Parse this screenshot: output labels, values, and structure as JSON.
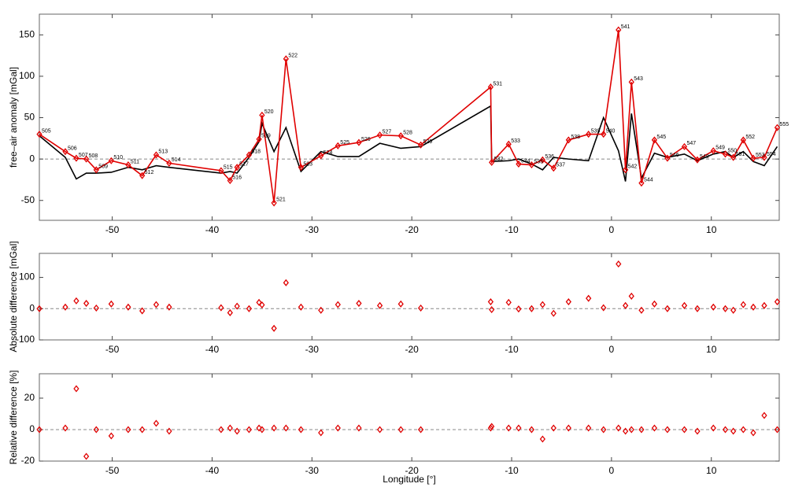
{
  "chart_data": [
    {
      "type": "line",
      "ylabel": "free–air anomaly [mGal]",
      "x": [
        -57.3,
        -54.7,
        -53.6,
        -52.6,
        -51.6,
        -50.1,
        -48.4,
        -47.0,
        -45.6,
        -44.3,
        -39.1,
        -38.2,
        -37.5,
        -36.3,
        -35.3,
        -35.0,
        -33.8,
        -32.6,
        -31.1,
        -29.1,
        -27.4,
        -25.3,
        -23.2,
        -21.1,
        -19.1,
        -12.1,
        -12.0,
        -10.3,
        -9.3,
        -8.0,
        -6.9,
        -5.8,
        -4.3,
        -2.3,
        -0.8,
        0.7,
        1.4,
        2.0,
        3.0,
        4.3,
        5.6,
        7.3,
        8.6,
        10.2,
        11.4,
        12.2,
        13.2,
        14.2,
        15.3,
        16.6
      ],
      "point_labels": [
        "505",
        "506",
        "507",
        "508",
        "509",
        "510",
        "511",
        "512",
        "513",
        "514",
        "515",
        "516",
        "517",
        "518",
        "519",
        "520",
        "521",
        "522",
        "523",
        "524",
        "525",
        "526",
        "527",
        "528",
        "529",
        "531",
        "532",
        "533",
        "534",
        "535",
        "536",
        "537",
        "538",
        "539",
        "540",
        "541",
        "542",
        "543",
        "544",
        "545",
        "546",
        "547",
        "548",
        "549",
        "550",
        "551",
        "552",
        "553",
        "554",
        "555"
      ],
      "series": [
        {
          "color": "#000000",
          "marker": false,
          "values": [
            28,
            2,
            -24,
            -17,
            -17,
            -16,
            -10,
            -13,
            -8,
            -10,
            -17,
            -15,
            -17,
            2,
            21,
            43,
            9,
            38,
            -15,
            9,
            3,
            3,
            19,
            13,
            15,
            64,
            -3,
            -2,
            0,
            -6,
            -13,
            2,
            0,
            -2,
            50,
            10,
            -27,
            55,
            -23,
            7,
            2,
            6,
            -2,
            6,
            9,
            2,
            9,
            -3,
            -8,
            15
          ]
        },
        {
          "color": "#e00000",
          "marker": true,
          "values": [
            30,
            9,
            1,
            0,
            -13,
            -2,
            -7,
            -20,
            5,
            -5,
            -14,
            -26,
            -10,
            5,
            24,
            53,
            -53,
            121,
            -10,
            4,
            16,
            20,
            29,
            28,
            17,
            87,
            -4,
            18,
            -6,
            -7,
            -1,
            -11,
            23,
            30,
            30,
            156,
            -13,
            93,
            -29,
            23,
            1,
            15,
            -1,
            10,
            6,
            2,
            23,
            1,
            2,
            38
          ]
        }
      ],
      "xlim": [
        -57.3,
        16.8
      ],
      "ylim": [
        -74,
        175
      ],
      "xticks": [
        -50,
        -40,
        -30,
        -20,
        -10,
        0,
        10
      ],
      "yticks": [
        -50,
        0,
        50,
        100,
        150
      ],
      "zero_line": true
    },
    {
      "type": "scatter",
      "ylabel": "Absolute difference [mGal]",
      "x": [
        -57.3,
        -54.7,
        -53.6,
        -52.6,
        -51.6,
        -50.1,
        -48.4,
        -47.0,
        -45.6,
        -44.3,
        -39.1,
        -38.2,
        -37.5,
        -36.3,
        -35.3,
        -35.0,
        -33.8,
        -32.6,
        -31.1,
        -29.1,
        -27.4,
        -25.3,
        -23.2,
        -21.1,
        -19.1,
        -12.1,
        -12.0,
        -10.3,
        -9.3,
        -8.0,
        -6.9,
        -5.8,
        -4.3,
        -2.3,
        -0.8,
        0.7,
        1.4,
        2.0,
        3.0,
        4.3,
        5.6,
        7.3,
        8.6,
        10.2,
        11.4,
        12.2,
        13.2,
        14.2,
        15.3,
        16.6
      ],
      "series": [
        {
          "color": "#e00000",
          "values": [
            0,
            5,
            25,
            17,
            2,
            15,
            5,
            -7,
            13,
            5,
            3,
            -13,
            8,
            0,
            20,
            12,
            -63,
            83,
            5,
            -5,
            13,
            17,
            10,
            15,
            2,
            22,
            -3,
            20,
            -1,
            0,
            13,
            -15,
            22,
            33,
            3,
            143,
            10,
            40,
            -5,
            15,
            0,
            10,
            0,
            5,
            0,
            -5,
            13,
            5,
            10,
            22
          ]
        }
      ],
      "xlim": [
        -57.3,
        16.8
      ],
      "ylim": [
        -100,
        177
      ],
      "xticks": [
        -50,
        -40,
        -30,
        -20,
        -10,
        0,
        10
      ],
      "yticks": [
        -100,
        0,
        100
      ],
      "zero_line": true
    },
    {
      "type": "scatter",
      "ylabel": "Relative difference [%]",
      "xlabel": "Longitude [°]",
      "x": [
        -57.3,
        -54.7,
        -53.6,
        -52.6,
        -51.6,
        -50.1,
        -48.4,
        -47.0,
        -45.6,
        -44.3,
        -39.1,
        -38.2,
        -37.5,
        -36.3,
        -35.3,
        -35.0,
        -33.8,
        -32.6,
        -31.1,
        -29.1,
        -27.4,
        -25.3,
        -23.2,
        -21.1,
        -19.1,
        -12.1,
        -12.0,
        -10.3,
        -9.3,
        -8.0,
        -6.9,
        -5.8,
        -4.3,
        -2.3,
        -0.8,
        0.7,
        1.4,
        2.0,
        3.0,
        4.3,
        5.6,
        7.3,
        8.6,
        10.2,
        11.4,
        12.2,
        13.2,
        14.2,
        15.3,
        16.6
      ],
      "series": [
        {
          "color": "#e00000",
          "values": [
            0,
            1,
            26,
            -17,
            0,
            -4,
            0,
            0,
            4,
            -1,
            0,
            1,
            -1,
            0,
            1,
            0,
            1,
            1,
            0,
            -2,
            1,
            1,
            0,
            0,
            0,
            1,
            2,
            1,
            1,
            0,
            -6,
            1,
            1,
            1,
            0,
            1,
            -1,
            0,
            0,
            1,
            0,
            0,
            -1,
            1,
            0,
            -1,
            0,
            -2,
            9,
            0
          ]
        }
      ],
      "xlim": [
        -57.3,
        16.8
      ],
      "ylim": [
        -20,
        35.5
      ],
      "xticks": [
        -50,
        -40,
        -30,
        -20,
        -10,
        0,
        10
      ],
      "yticks": [
        -20,
        0,
        20
      ],
      "zero_line": true
    }
  ]
}
